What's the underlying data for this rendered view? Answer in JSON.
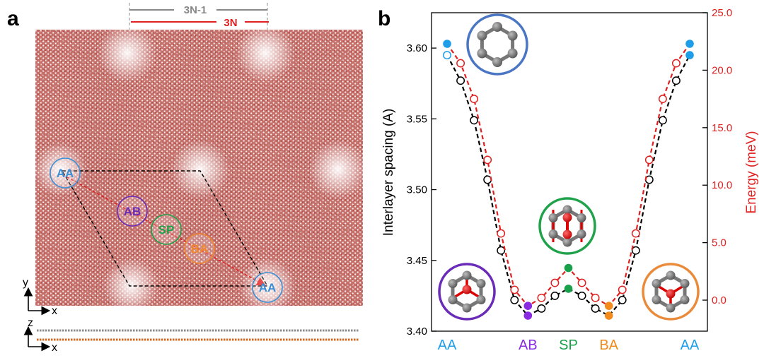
{
  "panel_a": {
    "label": "a",
    "scale_gray": "3N-1",
    "scale_red": "3N",
    "sites": [
      {
        "id": "AA",
        "color": "#3a8fd6"
      },
      {
        "id": "AB",
        "color": "#6a2bb8"
      },
      {
        "id": "SP",
        "color": "#1fa24a"
      },
      {
        "id": "BA",
        "color": "#f0862a"
      },
      {
        "id": "AA",
        "color": "#3a8fd6"
      }
    ],
    "axes_top": {
      "vertical": "y",
      "horizontal": "x"
    },
    "axes_side": {
      "vertical": "z",
      "horizontal": "x"
    },
    "colors": {
      "lattice": "#a8322e",
      "layer_top": "#8c8c8c",
      "layer_bottom": "#d2691e"
    }
  },
  "panel_b": {
    "label": "b",
    "left_axis_title": "Interlayer spacing (A)",
    "right_axis_title": "Energy (meV)",
    "left_ticks": [
      "3.40",
      "3.45",
      "3.50",
      "3.55",
      "3.60"
    ],
    "right_ticks": [
      "0.0",
      "5.0",
      "10.0",
      "15.0",
      "20.0",
      "25.0"
    ],
    "categories": [
      {
        "label": "AA",
        "color": "#1e9ee8"
      },
      {
        "label": "AB",
        "color": "#8a2be2"
      },
      {
        "label": "SP",
        "color": "#18a04a"
      },
      {
        "label": "BA",
        "color": "#f28a1c"
      },
      {
        "label": "AA",
        "color": "#1e9ee8"
      }
    ],
    "colors": {
      "spacing": "#000000",
      "energy": "#e02020",
      "AA": "#1e9ee8",
      "AB": "#8a2be2",
      "SP": "#18a04a",
      "BA": "#f28a1c"
    }
  },
  "chart_data": {
    "type": "line",
    "x_positions": [
      0,
      1,
      2,
      3,
      4,
      5,
      6,
      7,
      8,
      9,
      10,
      11,
      12,
      13,
      14,
      15,
      16,
      17,
      18
    ],
    "category_ticks": [
      {
        "x": 0,
        "label": "AA"
      },
      {
        "x": 6,
        "label": "AB"
      },
      {
        "x": 9,
        "label": "SP"
      },
      {
        "x": 12,
        "label": "BA"
      },
      {
        "x": 18,
        "label": "AA"
      }
    ],
    "ylim_left": [
      3.4,
      3.625
    ],
    "ylim_right": [
      -2.7,
      25.0
    ],
    "series": [
      {
        "axis": "left",
        "color": "#000000",
        "values": [
          3.595,
          3.577,
          3.549,
          3.507,
          3.457,
          3.422,
          3.411,
          3.416,
          3.425,
          3.43,
          3.425,
          3.416,
          3.411,
          3.422,
          3.457,
          3.507,
          3.549,
          3.577,
          3.595
        ]
      },
      {
        "axis": "right",
        "color": "#e02020",
        "values": [
          22.3,
          20.6,
          17.5,
          12.2,
          5.8,
          0.9,
          -0.5,
          0.2,
          1.5,
          2.8,
          1.5,
          0.2,
          -0.5,
          0.9,
          5.8,
          12.2,
          17.5,
          20.6,
          22.3
        ]
      }
    ],
    "highlighted": [
      {
        "x": 0,
        "series": 0,
        "color": "#1e9ee8",
        "filled": false
      },
      {
        "x": 0,
        "series": 1,
        "color": "#1e9ee8",
        "filled": true
      },
      {
        "x": 6,
        "series": 0,
        "color": "#8a2be2",
        "filled": true
      },
      {
        "x": 6,
        "series": 1,
        "color": "#8a2be2",
        "filled": true
      },
      {
        "x": 9,
        "series": 0,
        "color": "#18a04a",
        "filled": true
      },
      {
        "x": 9,
        "series": 1,
        "color": "#18a04a",
        "filled": true
      },
      {
        "x": 12,
        "series": 0,
        "color": "#f28a1c",
        "filled": true
      },
      {
        "x": 12,
        "series": 1,
        "color": "#f28a1c",
        "filled": true
      },
      {
        "x": 18,
        "series": 0,
        "color": "#1e9ee8",
        "filled": true
      },
      {
        "x": 18,
        "series": 1,
        "color": "#1e9ee8",
        "filled": true
      }
    ],
    "grid": false,
    "xlabel": "",
    "ylabel": "Interlayer spacing (A)",
    "ylabel_right": "Energy (meV)"
  }
}
